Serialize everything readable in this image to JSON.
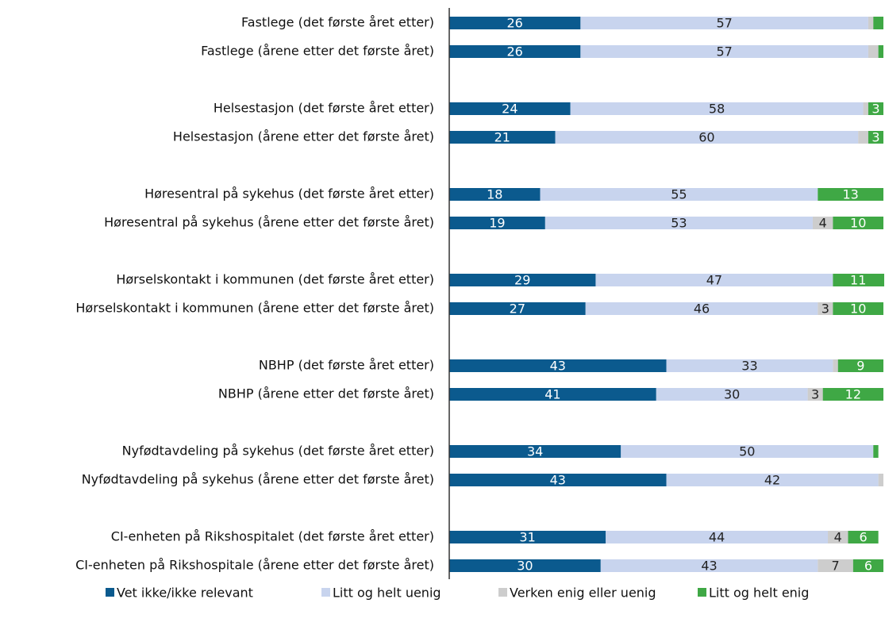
{
  "chart_data": {
    "type": "stacked-bar-horizontal",
    "categories": [
      "Fastlege (det første året etter)",
      "Fastlege (årene etter det første året)",
      "Helsestasjon (det første året etter)",
      "Helsestasjon (årene etter det første året)",
      "Høresentral på sykehus (det første året etter)",
      "Høresentral på sykehus (årene etter det første året)",
      "Hørselskontakt i kommunen (det første året etter)",
      "Hørselskontakt i kommunen (årene etter det første året)",
      "NBHP (det første året etter)",
      "NBHP (årene etter det første året)",
      "Nyfødtavdeling på sykehus (det første året etter)",
      "Nyfødtavdeling på sykehus (årene etter det første året)",
      "CI-enheten på Rikshospitalet (det første året etter)",
      "CI-enheten på Rikshospitale (årene etter det første året)"
    ],
    "series": [
      {
        "name": "Vet ikke/ikke relevant",
        "color": "#0b5a8e",
        "label_color": "#ffffff",
        "values": [
          26,
          26,
          24,
          21,
          18,
          19,
          29,
          27,
          43,
          41,
          34,
          43,
          31,
          30
        ]
      },
      {
        "name": "Litt og helt uenig",
        "color": "#c8d4ee",
        "label_color": "#222222",
        "values": [
          57,
          57,
          58,
          60,
          55,
          53,
          47,
          46,
          33,
          30,
          50,
          42,
          44,
          43
        ]
      },
      {
        "name": "Verken enig eller uenig",
        "color": "#cdcdcd",
        "label_color": "#222222",
        "values": [
          1,
          2,
          1,
          2,
          0,
          4,
          0,
          3,
          1,
          3,
          0,
          1,
          4,
          7
        ]
      },
      {
        "name": "Litt og helt enig",
        "color": "#3fa845",
        "label_color": "#ffffff",
        "values": [
          2,
          1,
          3,
          3,
          13,
          10,
          11,
          10,
          9,
          12,
          1,
          0,
          6,
          6
        ]
      }
    ],
    "label_min": 3,
    "xlim": [
      0,
      86
    ]
  }
}
